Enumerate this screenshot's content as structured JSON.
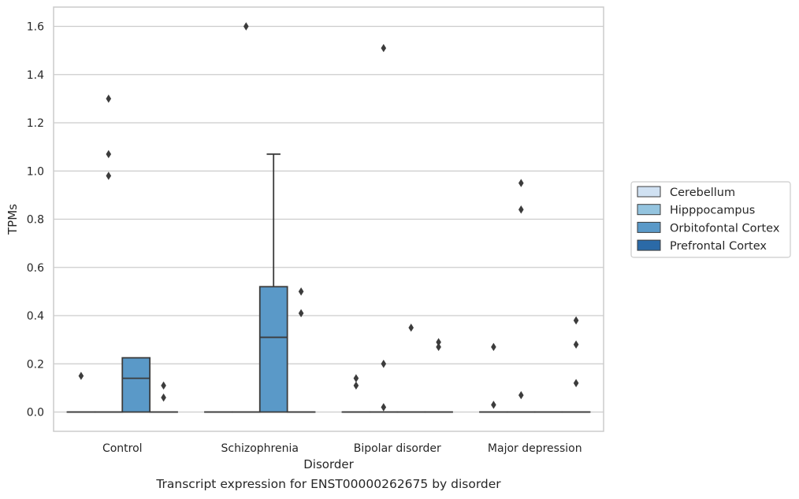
{
  "caption": "Transcript expression for ENST00000262675 by disorder",
  "chart_data": {
    "type": "box",
    "xlabel": "Disorder",
    "ylabel": "TPMs",
    "ylim": [
      -0.08,
      1.68
    ],
    "yticks": [
      0.0,
      0.2,
      0.4,
      0.6,
      0.8,
      1.0,
      1.2,
      1.4,
      1.6
    ],
    "ytick_labels": [
      "0.0",
      "0.2",
      "0.4",
      "0.6",
      "0.8",
      "1.0",
      "1.2",
      "1.4",
      "1.6"
    ],
    "grid": true,
    "categories": [
      "Control",
      "Schizophrenia",
      "Bipolar disorder",
      "Major depression"
    ],
    "legend_position": "outside-right",
    "series": [
      {
        "name": "Cerebellum",
        "color": "#d0e1f2",
        "boxes": [
          {
            "category": "Control",
            "q1": 0,
            "median": 0,
            "q3": 0,
            "whisker_low": 0,
            "whisker_high": 0,
            "outliers": [
              0.15
            ]
          },
          {
            "category": "Schizophrenia",
            "q1": 0,
            "median": 0,
            "q3": 0,
            "whisker_low": 0,
            "whisker_high": 0,
            "outliers": []
          },
          {
            "category": "Bipolar disorder",
            "q1": 0,
            "median": 0,
            "q3": 0,
            "whisker_low": 0,
            "whisker_high": 0,
            "outliers": [
              0.14,
              0.11
            ]
          },
          {
            "category": "Major depression",
            "q1": 0,
            "median": 0,
            "q3": 0,
            "whisker_low": 0,
            "whisker_high": 0,
            "outliers": [
              0.27,
              0.03
            ]
          }
        ]
      },
      {
        "name": "Hipppocampus",
        "color": "#94c4df",
        "boxes": [
          {
            "category": "Control",
            "q1": 0,
            "median": 0,
            "q3": 0,
            "whisker_low": 0,
            "whisker_high": 0,
            "outliers": [
              1.3,
              1.07,
              0.98
            ]
          },
          {
            "category": "Schizophrenia",
            "q1": 0,
            "median": 0,
            "q3": 0,
            "whisker_low": 0,
            "whisker_high": 0,
            "outliers": [
              1.6
            ]
          },
          {
            "category": "Bipolar disorder",
            "q1": 0,
            "median": 0,
            "q3": 0,
            "whisker_low": 0,
            "whisker_high": 0,
            "outliers": [
              1.51,
              0.2,
              0.02
            ]
          },
          {
            "category": "Major depression",
            "q1": 0,
            "median": 0,
            "q3": 0,
            "whisker_low": 0,
            "whisker_high": 0,
            "outliers": [
              0.95,
              0.84,
              0.07
            ]
          }
        ]
      },
      {
        "name": "Orbitofontal Cortex",
        "color": "#5a99c8",
        "boxes": [
          {
            "category": "Control",
            "q1": 0,
            "median": 0.14,
            "q3": 0.225,
            "whisker_low": 0,
            "whisker_high": 0.225,
            "outliers": []
          },
          {
            "category": "Schizophrenia",
            "q1": 0,
            "median": 0.31,
            "q3": 0.52,
            "whisker_low": 0,
            "whisker_high": 1.07,
            "outliers": []
          },
          {
            "category": "Bipolar disorder",
            "q1": 0,
            "median": 0,
            "q3": 0,
            "whisker_low": 0,
            "whisker_high": 0,
            "outliers": [
              0.35
            ]
          },
          {
            "category": "Major depression",
            "q1": 0,
            "median": 0,
            "q3": 0,
            "whisker_low": 0,
            "whisker_high": 0,
            "outliers": []
          }
        ]
      },
      {
        "name": "Prefrontal Cortex",
        "color": "#2b6aa7",
        "boxes": [
          {
            "category": "Control",
            "q1": 0,
            "median": 0,
            "q3": 0,
            "whisker_low": 0,
            "whisker_high": 0,
            "outliers": [
              0.11,
              0.06
            ]
          },
          {
            "category": "Schizophrenia",
            "q1": 0,
            "median": 0,
            "q3": 0,
            "whisker_low": 0,
            "whisker_high": 0,
            "outliers": [
              0.5,
              0.41
            ]
          },
          {
            "category": "Bipolar disorder",
            "q1": 0,
            "median": 0,
            "q3": 0,
            "whisker_low": 0,
            "whisker_high": 0,
            "outliers": [
              0.29,
              0.27
            ]
          },
          {
            "category": "Major depression",
            "q1": 0,
            "median": 0,
            "q3": 0,
            "whisker_low": 0,
            "whisker_high": 0,
            "outliers": [
              0.38,
              0.28,
              0.12
            ]
          }
        ]
      }
    ]
  }
}
